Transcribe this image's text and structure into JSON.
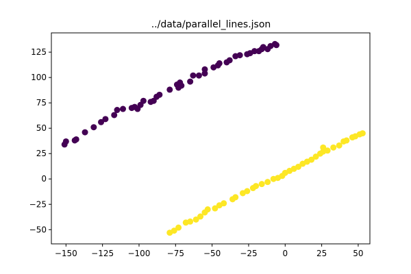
{
  "chart_data": {
    "type": "scatter",
    "title": "../data/parallel_lines.json",
    "xlabel": "",
    "ylabel": "",
    "xlim": [
      -160,
      58
    ],
    "ylim": [
      -64,
      144
    ],
    "xticks": [
      -150,
      -125,
      -100,
      -75,
      -50,
      -25,
      0,
      25,
      50
    ],
    "yticks": [
      -50,
      -25,
      0,
      25,
      50,
      75,
      100,
      125
    ],
    "grid": false,
    "series": [
      {
        "color": "#440154",
        "points": [
          [
            -151,
            34
          ],
          [
            -150,
            37
          ],
          [
            -144,
            38
          ],
          [
            -143,
            39
          ],
          [
            -137,
            46
          ],
          [
            -131,
            51
          ],
          [
            -126,
            56
          ],
          [
            -123,
            59
          ],
          [
            -117,
            63
          ],
          [
            -115,
            68
          ],
          [
            -111,
            69
          ],
          [
            -105,
            70
          ],
          [
            -103,
            71
          ],
          [
            -101,
            69
          ],
          [
            -99,
            73
          ],
          [
            -97,
            77
          ],
          [
            -92,
            76
          ],
          [
            -90,
            77
          ],
          [
            -88,
            81
          ],
          [
            -86,
            83
          ],
          [
            -79,
            88
          ],
          [
            -74,
            93
          ],
          [
            -73,
            90
          ],
          [
            -71,
            92
          ],
          [
            -72,
            95
          ],
          [
            -65,
            96
          ],
          [
            -63,
            102
          ],
          [
            -59,
            102
          ],
          [
            -55,
            104
          ],
          [
            -55,
            108
          ],
          [
            -49,
            110
          ],
          [
            -46,
            112
          ],
          [
            -45,
            114
          ],
          [
            -40,
            115
          ],
          [
            -38,
            117
          ],
          [
            -34,
            121
          ],
          [
            -31,
            122
          ],
          [
            -26,
            123
          ],
          [
            -24,
            124
          ],
          [
            -21,
            126
          ],
          [
            -18,
            126
          ],
          [
            -16,
            128
          ],
          [
            -15,
            130
          ],
          [
            -12,
            128
          ],
          [
            -10,
            131
          ],
          [
            -6,
            132
          ],
          [
            -7,
            133
          ]
        ]
      },
      {
        "color": "#fde725",
        "points": [
          [
            -79,
            -53
          ],
          [
            -76,
            -51
          ],
          [
            -73,
            -48
          ],
          [
            -68,
            -43
          ],
          [
            -65,
            -42
          ],
          [
            -61,
            -40
          ],
          [
            -58,
            -37
          ],
          [
            -55,
            -33
          ],
          [
            -53,
            -30
          ],
          [
            -48,
            -29
          ],
          [
            -45,
            -26
          ],
          [
            -42,
            -24
          ],
          [
            -36,
            -20
          ],
          [
            -34,
            -18
          ],
          [
            -29,
            -14
          ],
          [
            -26,
            -12
          ],
          [
            -22,
            -9
          ],
          [
            -20,
            -7
          ],
          [
            -16,
            -5
          ],
          [
            -12,
            -3
          ],
          [
            -8,
            0
          ],
          [
            -5,
            1
          ],
          [
            -2,
            3
          ],
          [
            0,
            6
          ],
          [
            3,
            8
          ],
          [
            6,
            10
          ],
          [
            9,
            12
          ],
          [
            12,
            15
          ],
          [
            15,
            17
          ],
          [
            18,
            19
          ],
          [
            21,
            22
          ],
          [
            24,
            25
          ],
          [
            26,
            27
          ],
          [
            26,
            31
          ],
          [
            29,
            28
          ],
          [
            33,
            31
          ],
          [
            37,
            33
          ],
          [
            40,
            37
          ],
          [
            42,
            38
          ],
          [
            46,
            41
          ],
          [
            48,
            42
          ],
          [
            51,
            44
          ],
          [
            53,
            45
          ]
        ]
      }
    ]
  }
}
